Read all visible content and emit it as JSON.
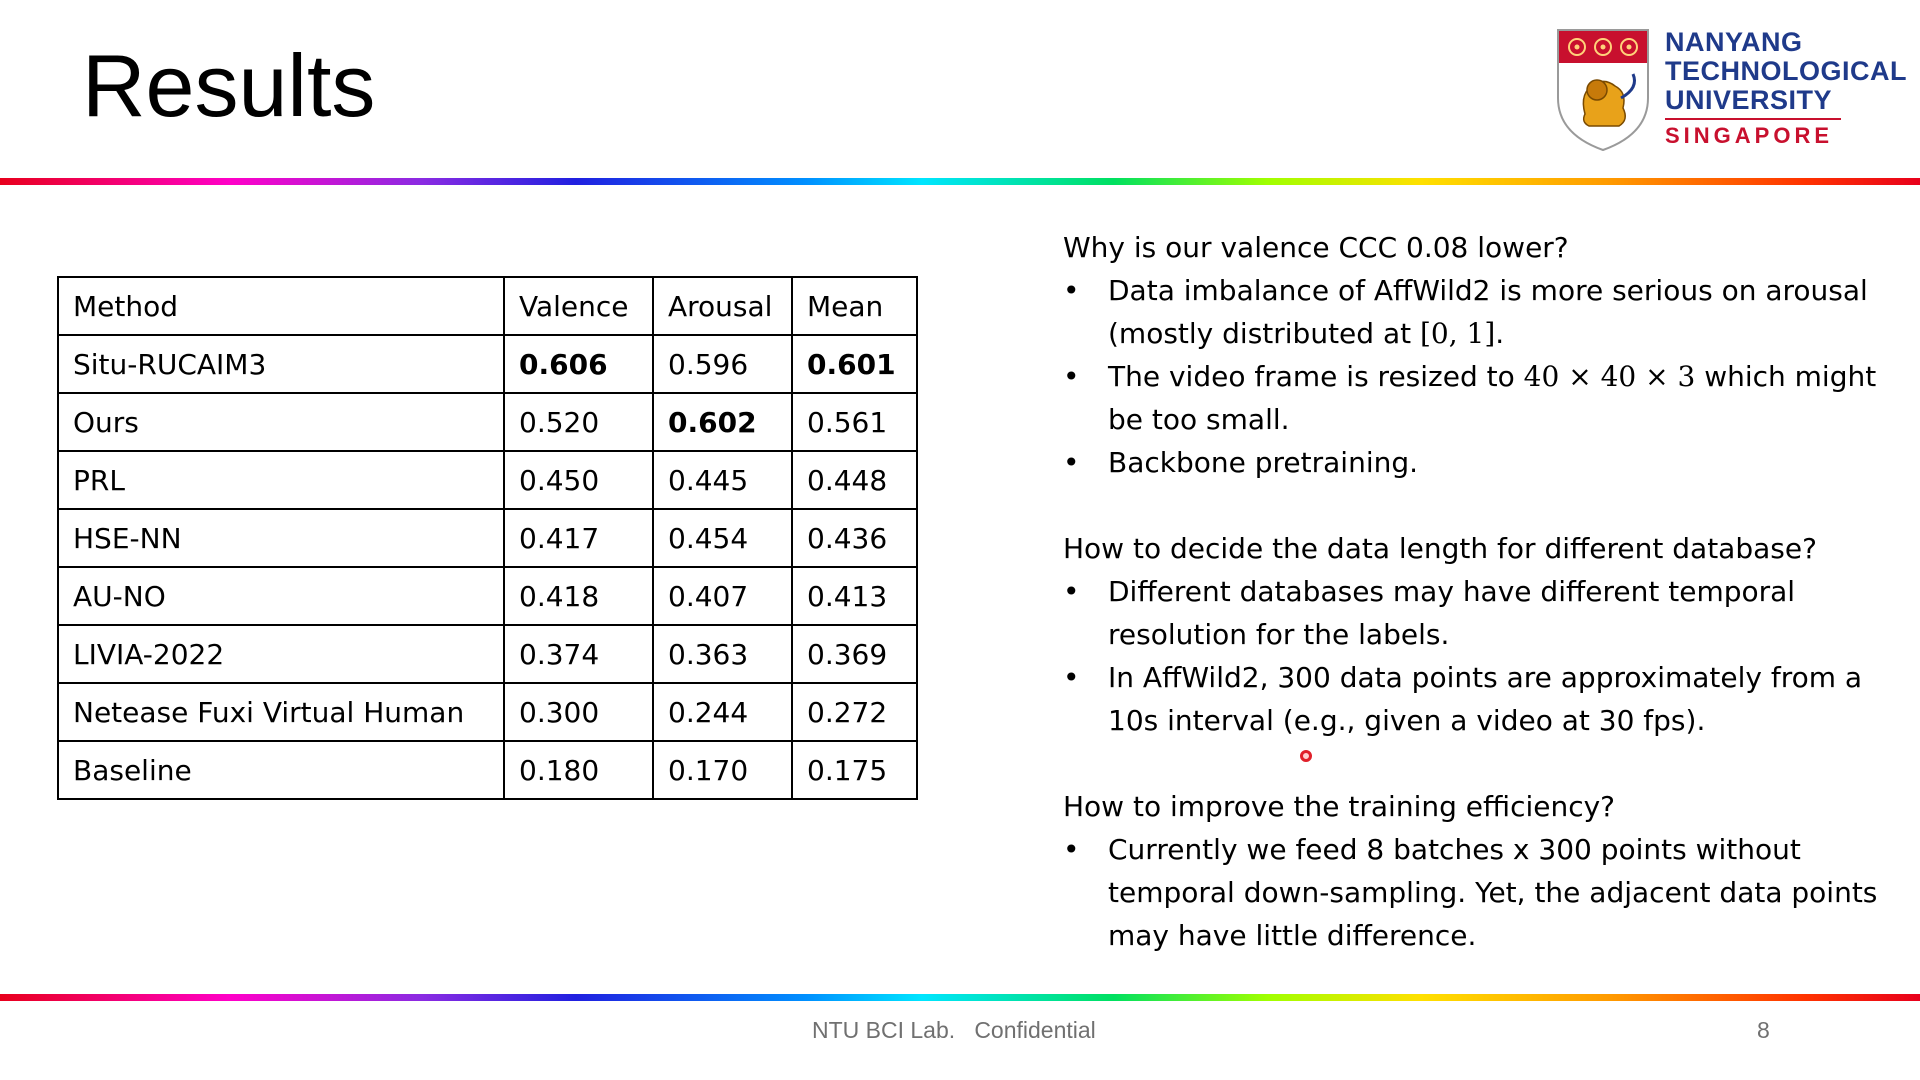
{
  "slide": {
    "title": "Results",
    "page_number": "8",
    "footer": "NTU BCI Lab.   Confidential"
  },
  "logo": {
    "line1": "NANYANG",
    "line2": "TECHNOLOGICAL",
    "line3": "UNIVERSITY",
    "line4": "SINGAPORE",
    "icon": "ntu-crest-icon",
    "color_primary": "#1f3a8a",
    "color_accent": "#c8102e"
  },
  "table": {
    "header": [
      "Method",
      "Valence",
      "Arousal",
      "Mean"
    ],
    "rows": [
      [
        {
          "v": "Situ-RUCAIM3"
        },
        {
          "v": "0.606",
          "b": true
        },
        {
          "v": "0.596"
        },
        {
          "v": "0.601",
          "b": true
        }
      ],
      [
        {
          "v": "Ours"
        },
        {
          "v": "0.520"
        },
        {
          "v": "0.602",
          "b": true
        },
        {
          "v": "0.561"
        }
      ],
      [
        {
          "v": "PRL"
        },
        {
          "v": "0.450"
        },
        {
          "v": "0.445"
        },
        {
          "v": "0.448"
        }
      ],
      [
        {
          "v": "HSE-NN"
        },
        {
          "v": "0.417"
        },
        {
          "v": "0.454"
        },
        {
          "v": "0.436"
        }
      ],
      [
        {
          "v": "AU-NO"
        },
        {
          "v": "0.418"
        },
        {
          "v": "0.407"
        },
        {
          "v": "0.413"
        }
      ],
      [
        {
          "v": "LIVIA-2022"
        },
        {
          "v": "0.374"
        },
        {
          "v": "0.363"
        },
        {
          "v": "0.369"
        }
      ],
      [
        {
          "v": "Netease Fuxi Virtual Human"
        },
        {
          "v": "0.300"
        },
        {
          "v": "0.244"
        },
        {
          "v": "0.272"
        }
      ],
      [
        {
          "v": "Baseline"
        },
        {
          "v": "0.180"
        },
        {
          "v": "0.170"
        },
        {
          "v": "0.175"
        }
      ]
    ]
  },
  "notes": {
    "q1": "Why is our valence CCC 0.08 lower?",
    "q1_b1": "Data imbalance of AffWild2 is more serious on arousal (mostly distributed at",
    "q1_b1_math": "[0, 1]",
    "q1_b1_end": ".",
    "q1_b2_pre": "The video frame is resized to",
    "q1_b2_math": "40 × 40 × 3",
    "q1_b2_post": "which might be too small.",
    "q1_b3": "Backbone pretraining.",
    "q2": "How to decide the data length for different database?",
    "q2_b1": "Different databases may have different temporal resolution for the labels.",
    "q2_b2": "In AffWild2, 300 data points are approximately from a 10s interval (e.g., given a video at 30 fps).",
    "q3": "How to improve the training efficiency?",
    "q3_b1": "Currently we feed 8 batches x 300 points without temporal down-sampling. Yet, the adjacent data points may have little difference.",
    "bullet": "•"
  }
}
